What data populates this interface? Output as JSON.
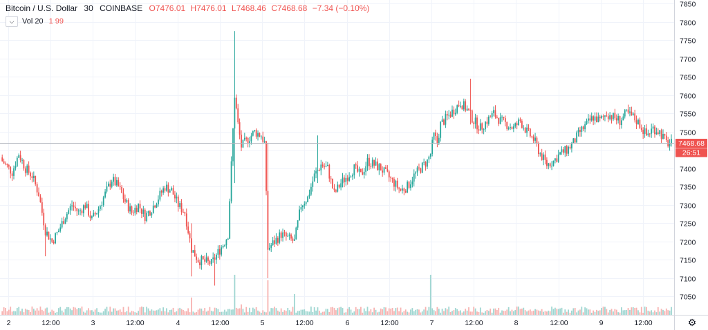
{
  "header": {
    "symbol": "Bitcoin / U.S. Dollar",
    "interval": "30",
    "exchange": "COINBASE",
    "open": "O7476.01",
    "high": "H7476.01",
    "low": "L7468.46",
    "close": "C7468.68",
    "change": "−7.34 (−0.10%)"
  },
  "volume_indicator": {
    "label": "Vol 20",
    "value": "1 99"
  },
  "price_label": {
    "price": "7468.68",
    "countdown": "26:51"
  },
  "colors": {
    "up": "#26a69a",
    "down": "#ef5350",
    "up_volume": "#9fd6d1",
    "down_volume": "#f7b3b1",
    "grid": "#f0f3fa",
    "axis_text": "#131722"
  },
  "chart_data": {
    "type": "candlestick",
    "ylim": [
      7000,
      7860
    ],
    "y_ticks": [
      7050,
      7100,
      7150,
      7200,
      7250,
      7300,
      7350,
      7400,
      7450,
      7500,
      7550,
      7600,
      7650,
      7700,
      7750,
      7800,
      7850
    ],
    "x_tick_labels": [
      "2",
      "12:00",
      "3",
      "12:00",
      "4",
      "12:00",
      "5",
      "12:00",
      "6",
      "12:00",
      "7",
      "12:00",
      "8",
      "12:00",
      "9",
      "12:00"
    ],
    "grid": true,
    "close_path": [
      [
        0,
        7420
      ],
      [
        6,
        7390
      ],
      [
        10,
        7440
      ],
      [
        14,
        7400
      ],
      [
        18,
        7380
      ],
      [
        22,
        7330
      ],
      [
        26,
        7230
      ],
      [
        30,
        7200
      ],
      [
        34,
        7230
      ],
      [
        38,
        7270
      ],
      [
        42,
        7300
      ],
      [
        46,
        7280
      ],
      [
        50,
        7300
      ],
      [
        54,
        7260
      ],
      [
        58,
        7290
      ],
      [
        62,
        7330
      ],
      [
        66,
        7370
      ],
      [
        70,
        7350
      ],
      [
        74,
        7310
      ],
      [
        78,
        7280
      ],
      [
        82,
        7300
      ],
      [
        86,
        7270
      ],
      [
        90,
        7290
      ],
      [
        94,
        7320
      ],
      [
        98,
        7350
      ],
      [
        102,
        7340
      ],
      [
        106,
        7300
      ],
      [
        110,
        7280
      ],
      [
        114,
        7180
      ],
      [
        118,
        7150
      ],
      [
        122,
        7145
      ],
      [
        126,
        7140
      ],
      [
        130,
        7170
      ],
      [
        134,
        7200
      ],
      [
        136,
        7220
      ],
      [
        140,
        7600
      ],
      [
        142,
        7520
      ],
      [
        144,
        7460
      ],
      [
        148,
        7480
      ],
      [
        152,
        7500
      ],
      [
        156,
        7490
      ],
      [
        158,
        7470
      ],
      [
        160,
        7180
      ],
      [
        164,
        7200
      ],
      [
        168,
        7220
      ],
      [
        172,
        7210
      ],
      [
        176,
        7200
      ],
      [
        180,
        7300
      ],
      [
        184,
        7320
      ],
      [
        188,
        7380
      ],
      [
        192,
        7410
      ],
      [
        196,
        7400
      ],
      [
        200,
        7330
      ],
      [
        204,
        7360
      ],
      [
        208,
        7380
      ],
      [
        212,
        7400
      ],
      [
        216,
        7380
      ],
      [
        220,
        7420
      ],
      [
        224,
        7410
      ],
      [
        228,
        7400
      ],
      [
        232,
        7380
      ],
      [
        236,
        7360
      ],
      [
        240,
        7340
      ],
      [
        244,
        7350
      ],
      [
        248,
        7380
      ],
      [
        252,
        7400
      ],
      [
        256,
        7420
      ],
      [
        258,
        7440
      ],
      [
        260,
        7490
      ],
      [
        262,
        7470
      ],
      [
        264,
        7520
      ],
      [
        268,
        7540
      ],
      [
        272,
        7560
      ],
      [
        276,
        7580
      ],
      [
        280,
        7560
      ],
      [
        284,
        7530
      ],
      [
        288,
        7510
      ],
      [
        292,
        7530
      ],
      [
        296,
        7550
      ],
      [
        300,
        7530
      ],
      [
        304,
        7520
      ],
      [
        308,
        7510
      ],
      [
        312,
        7530
      ],
      [
        316,
        7500
      ],
      [
        320,
        7480
      ],
      [
        324,
        7440
      ],
      [
        328,
        7410
      ],
      [
        332,
        7420
      ],
      [
        336,
        7440
      ],
      [
        340,
        7450
      ],
      [
        344,
        7470
      ],
      [
        348,
        7500
      ],
      [
        352,
        7520
      ],
      [
        356,
        7540
      ],
      [
        360,
        7530
      ],
      [
        364,
        7550
      ],
      [
        368,
        7540
      ],
      [
        372,
        7530
      ],
      [
        376,
        7550
      ],
      [
        380,
        7540
      ],
      [
        384,
        7520
      ],
      [
        388,
        7490
      ],
      [
        392,
        7510
      ],
      [
        396,
        7500
      ],
      [
        400,
        7470
      ],
      [
        402,
        7468
      ]
    ],
    "spikes": [
      {
        "bar": 140,
        "high": 7775,
        "low": 7360
      },
      {
        "bar": 160,
        "high": 7470,
        "low": 7100
      },
      {
        "bar": 114,
        "high": 7250,
        "low": 7105
      },
      {
        "bar": 26,
        "high": 7250,
        "low": 7160
      },
      {
        "bar": 282,
        "high": 7645,
        "low": 7520
      },
      {
        "bar": 128,
        "high": 7160,
        "low": 7080
      },
      {
        "bar": 190,
        "high": 7490,
        "low": 7360
      }
    ],
    "volume_spikes": [
      {
        "bar": 140,
        "value": 58
      },
      {
        "bar": 160,
        "value": 50
      },
      {
        "bar": 176,
        "value": 30
      },
      {
        "bar": 258,
        "value": 58
      },
      {
        "bar": 114,
        "value": 25
      },
      {
        "bar": 144,
        "value": 15
      },
      {
        "bar": 18,
        "value": 12
      }
    ]
  }
}
